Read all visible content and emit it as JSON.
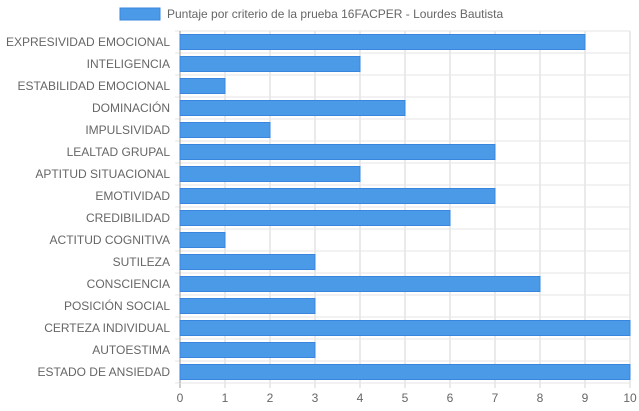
{
  "chart_data": {
    "type": "bar",
    "orientation": "horizontal",
    "legend": "top",
    "grid": true,
    "xlim": [
      0,
      10
    ],
    "x_ticks": [
      "0",
      "1",
      "2",
      "3",
      "4",
      "5",
      "6",
      "7",
      "8",
      "9",
      "10"
    ],
    "categories": [
      "EXPRESIVIDAD EMOCIONAL",
      "INTELIGENCIA",
      "ESTABILIDAD EMOCIONAL",
      "DOMINACIÓN",
      "IMPULSIVIDAD",
      "LEALTAD GRUPAL",
      "APTITUD SITUACIONAL",
      "EMOTIVIDAD",
      "CREDIBILIDAD",
      "ACTITUD COGNITIVA",
      "SUTILEZA",
      "CONSCIENCIA",
      "POSICIÓN SOCIAL",
      "CERTEZA INDIVIDUAL",
      "AUTOESTIMA",
      "ESTADO DE ANSIEDAD"
    ],
    "series": [
      {
        "name": "Puntaje por criterio de la prueba 16FACPER - Lourdes Bautista",
        "color": "#4a9ae8",
        "border_color": "#3a86df",
        "values": [
          9,
          4,
          1,
          5,
          2,
          7,
          4,
          7,
          6,
          1,
          3,
          8,
          3,
          10,
          3,
          10
        ]
      }
    ]
  }
}
